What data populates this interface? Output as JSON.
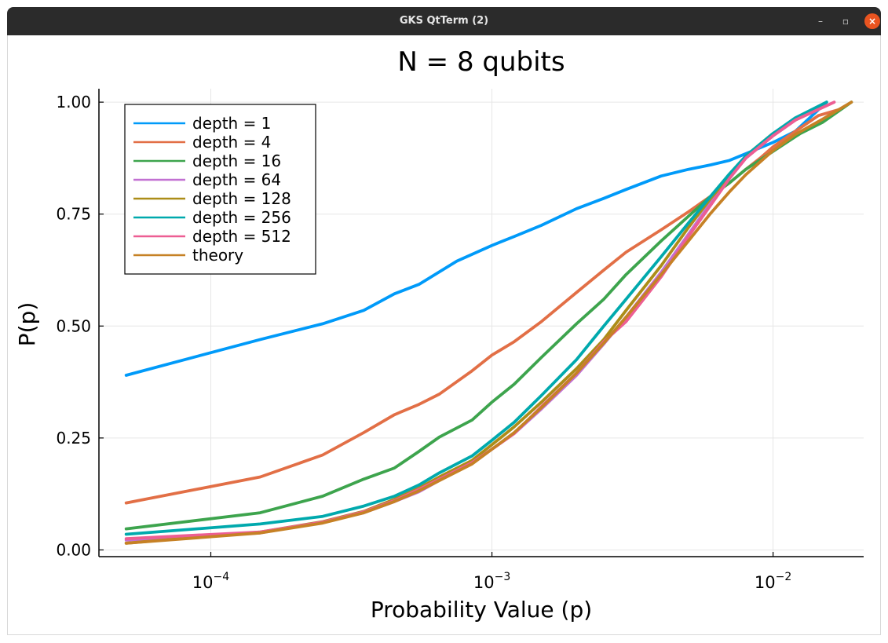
{
  "window": {
    "title": "GKS QtTerm (2)",
    "minimize": "–",
    "maximize": "▫",
    "close": "×"
  },
  "chart_data": {
    "type": "line",
    "title": "N = 8 qubits",
    "xlabel": "Probability Value (p)",
    "ylabel": "P(p)",
    "xscale": "log10",
    "xlim": [
      4e-05,
      0.021
    ],
    "ylim": [
      -0.015,
      1.03
    ],
    "xticks": [
      {
        "value": 0.0001,
        "base": "10",
        "exp": "−4"
      },
      {
        "value": 0.001,
        "base": "10",
        "exp": "−3"
      },
      {
        "value": 0.01,
        "base": "10",
        "exp": "−2"
      }
    ],
    "yticks": [
      {
        "value": 0.0,
        "label": "0.00"
      },
      {
        "value": 0.25,
        "label": "0.25"
      },
      {
        "value": 0.5,
        "label": "0.50"
      },
      {
        "value": 0.75,
        "label": "0.75"
      },
      {
        "value": 1.0,
        "label": "1.00"
      }
    ],
    "grid": true,
    "legend_position": "top-left",
    "series": [
      {
        "name": "depth = 1",
        "color": "#009af9",
        "x": [
          5e-05,
          0.00015,
          0.00025,
          0.00035,
          0.00045,
          0.00055,
          0.00075,
          0.001,
          0.0012,
          0.0015,
          0.002,
          0.0025,
          0.003,
          0.004,
          0.005,
          0.006,
          0.007,
          0.008,
          0.01,
          0.012,
          0.0155
        ],
        "y": [
          0.39,
          0.47,
          0.505,
          0.535,
          0.572,
          0.593,
          0.645,
          0.68,
          0.7,
          0.725,
          0.762,
          0.785,
          0.805,
          0.835,
          0.85,
          0.86,
          0.87,
          0.885,
          0.91,
          0.935,
          1.0
        ]
      },
      {
        "name": "depth = 4",
        "color": "#e26f46",
        "x": [
          5e-05,
          0.00015,
          0.00025,
          0.00035,
          0.00045,
          0.00055,
          0.00065,
          0.00085,
          0.001,
          0.0012,
          0.0015,
          0.002,
          0.0025,
          0.003,
          0.004,
          0.005,
          0.006,
          0.007,
          0.008,
          0.009,
          0.01,
          0.012,
          0.0145,
          0.0175
        ],
        "y": [
          0.105,
          0.163,
          0.212,
          0.262,
          0.302,
          0.325,
          0.348,
          0.4,
          0.435,
          0.465,
          0.51,
          0.575,
          0.625,
          0.665,
          0.715,
          0.755,
          0.79,
          0.82,
          0.85,
          0.875,
          0.9,
          0.935,
          0.97,
          0.985
        ]
      },
      {
        "name": "depth = 16",
        "color": "#3da44d",
        "x": [
          5e-05,
          0.00015,
          0.00025,
          0.00035,
          0.00045,
          0.00055,
          0.00065,
          0.00085,
          0.001,
          0.0012,
          0.0015,
          0.002,
          0.0025,
          0.003,
          0.004,
          0.005,
          0.006,
          0.007,
          0.008,
          0.01,
          0.0125,
          0.015,
          0.019
        ],
        "y": [
          0.047,
          0.083,
          0.12,
          0.158,
          0.183,
          0.22,
          0.252,
          0.29,
          0.33,
          0.37,
          0.43,
          0.505,
          0.56,
          0.615,
          0.69,
          0.745,
          0.79,
          0.82,
          0.85,
          0.89,
          0.93,
          0.955,
          1.0
        ]
      },
      {
        "name": "depth = 64",
        "color": "#c271d2",
        "x": [
          5e-05,
          0.00015,
          0.00025,
          0.00035,
          0.00045,
          0.00055,
          0.00065,
          0.00085,
          0.001,
          0.0012,
          0.0015,
          0.002,
          0.0025,
          0.003,
          0.004,
          0.005,
          0.006,
          0.007,
          0.008,
          0.01,
          0.012,
          0.0145
        ],
        "y": [
          0.022,
          0.038,
          0.062,
          0.083,
          0.108,
          0.13,
          0.155,
          0.193,
          0.225,
          0.26,
          0.315,
          0.39,
          0.46,
          0.52,
          0.62,
          0.705,
          0.775,
          0.83,
          0.875,
          0.925,
          0.96,
          0.99
        ]
      },
      {
        "name": "depth = 128",
        "color": "#ac8d18",
        "x": [
          5e-05,
          0.00015,
          0.00025,
          0.00035,
          0.00045,
          0.00055,
          0.00065,
          0.00085,
          0.001,
          0.0012,
          0.0015,
          0.002,
          0.0025,
          0.003,
          0.004,
          0.005,
          0.006,
          0.007,
          0.008,
          0.01,
          0.012,
          0.015
        ],
        "y": [
          0.015,
          0.04,
          0.063,
          0.086,
          0.113,
          0.138,
          0.163,
          0.2,
          0.235,
          0.275,
          0.33,
          0.405,
          0.47,
          0.535,
          0.635,
          0.72,
          0.785,
          0.835,
          0.88,
          0.93,
          0.96,
          0.99
        ]
      },
      {
        "name": "depth = 256",
        "color": "#00a9ad",
        "x": [
          5e-05,
          0.00015,
          0.00025,
          0.00035,
          0.00045,
          0.00055,
          0.00065,
          0.00085,
          0.001,
          0.0012,
          0.0015,
          0.002,
          0.0025,
          0.003,
          0.004,
          0.005,
          0.006,
          0.007,
          0.008,
          0.01,
          0.012,
          0.0155
        ],
        "y": [
          0.035,
          0.058,
          0.075,
          0.098,
          0.12,
          0.145,
          0.172,
          0.21,
          0.245,
          0.285,
          0.345,
          0.425,
          0.5,
          0.56,
          0.655,
          0.73,
          0.79,
          0.84,
          0.88,
          0.93,
          0.965,
          1.0
        ]
      },
      {
        "name": "depth = 512",
        "color": "#ed5e93",
        "x": [
          5e-05,
          0.00015,
          0.00025,
          0.00035,
          0.00045,
          0.00055,
          0.00065,
          0.00085,
          0.001,
          0.0012,
          0.0015,
          0.002,
          0.0025,
          0.003,
          0.004,
          0.005,
          0.006,
          0.007,
          0.008,
          0.01,
          0.012,
          0.0165
        ],
        "y": [
          0.025,
          0.04,
          0.062,
          0.085,
          0.11,
          0.135,
          0.158,
          0.195,
          0.225,
          0.26,
          0.32,
          0.395,
          0.465,
          0.51,
          0.61,
          0.7,
          0.77,
          0.83,
          0.875,
          0.925,
          0.96,
          1.0
        ]
      },
      {
        "name": "theory",
        "color": "#c68125",
        "x": [
          5e-05,
          0.00015,
          0.00025,
          0.00035,
          0.00045,
          0.00055,
          0.00065,
          0.00085,
          0.001,
          0.0012,
          0.0015,
          0.002,
          0.0025,
          0.003,
          0.004,
          0.005,
          0.006,
          0.007,
          0.008,
          0.01,
          0.012,
          0.015,
          0.019
        ],
        "y": [
          0.015,
          0.038,
          0.06,
          0.083,
          0.108,
          0.132,
          0.155,
          0.192,
          0.225,
          0.262,
          0.318,
          0.395,
          0.462,
          0.52,
          0.615,
          0.69,
          0.752,
          0.8,
          0.838,
          0.892,
          0.928,
          0.962,
          1.0
        ]
      }
    ]
  }
}
